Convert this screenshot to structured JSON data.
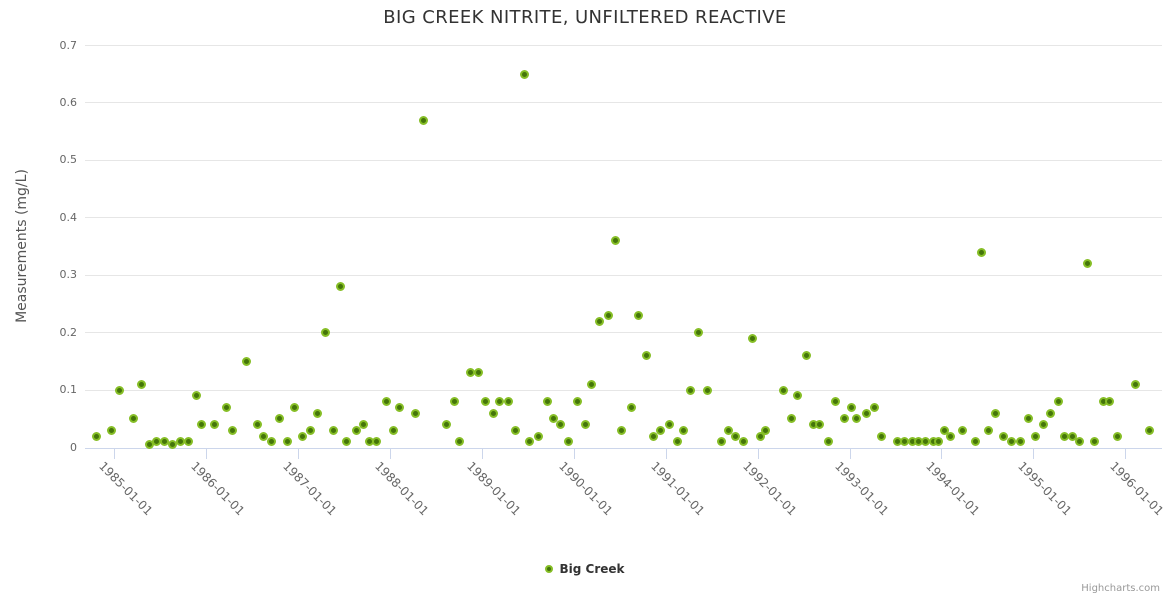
{
  "credits": "Highcharts.com",
  "colors": {
    "background": "#ffffff",
    "marker_outer": "#86be26",
    "marker_inner": "#44750a",
    "grid": "#e6e6e6",
    "axis_line": "#ccd6eb",
    "title_text": "#333333",
    "axis_title_text": "#555555",
    "axis_label_text": "#666666",
    "legend_text": "#333333",
    "credits_text": "#999999"
  },
  "chart_data": {
    "type": "scatter",
    "title": "BIG CREEK NITRITE, UNFILTERED REACTIVE",
    "xlabel": "",
    "ylabel": "Measurements (mg/L)",
    "legend_position": "bottom-center",
    "grid": true,
    "xlim": [
      1984.68,
      1996.4
    ],
    "ylim": [
      0,
      0.7
    ],
    "x_ticks": [
      {
        "year": 1985,
        "label": "1985-01-01"
      },
      {
        "year": 1986,
        "label": "1986-01-01"
      },
      {
        "year": 1987,
        "label": "1987-01-01"
      },
      {
        "year": 1988,
        "label": "1988-01-01"
      },
      {
        "year": 1989,
        "label": "1989-01-01"
      },
      {
        "year": 1990,
        "label": "1990-01-01"
      },
      {
        "year": 1991,
        "label": "1991-01-01"
      },
      {
        "year": 1992,
        "label": "1992-01-01"
      },
      {
        "year": 1993,
        "label": "1993-01-01"
      },
      {
        "year": 1994,
        "label": "1994-01-01"
      },
      {
        "year": 1995,
        "label": "1995-01-01"
      },
      {
        "year": 1996,
        "label": "1996-01-01"
      }
    ],
    "y_ticks": [
      {
        "value": 0,
        "label": "0"
      },
      {
        "value": 0.1,
        "label": "0.1"
      },
      {
        "value": 0.2,
        "label": "0.2"
      },
      {
        "value": 0.3,
        "label": "0.3"
      },
      {
        "value": 0.4,
        "label": "0.4"
      },
      {
        "value": 0.5,
        "label": "0.5"
      },
      {
        "value": 0.6,
        "label": "0.6"
      },
      {
        "value": 0.7,
        "label": "0.7"
      }
    ],
    "series": [
      {
        "name": "Big Creek",
        "points": [
          [
            1984.8,
            0.02
          ],
          [
            1984.97,
            0.03
          ],
          [
            1985.05,
            0.1
          ],
          [
            1985.21,
            0.05
          ],
          [
            1985.29,
            0.11
          ],
          [
            1985.38,
            0.005
          ],
          [
            1985.46,
            0.01
          ],
          [
            1985.54,
            0.01
          ],
          [
            1985.63,
            0.005
          ],
          [
            1985.72,
            0.01
          ],
          [
            1985.81,
            0.01
          ],
          [
            1985.89,
            0.09
          ],
          [
            1985.95,
            0.04
          ],
          [
            1986.09,
            0.04
          ],
          [
            1986.22,
            0.07
          ],
          [
            1986.29,
            0.03
          ],
          [
            1986.44,
            0.15
          ],
          [
            1986.56,
            0.04
          ],
          [
            1986.62,
            0.02
          ],
          [
            1986.71,
            0.01
          ],
          [
            1986.8,
            0.05
          ],
          [
            1986.88,
            0.01
          ],
          [
            1986.96,
            0.07
          ],
          [
            1987.05,
            0.02
          ],
          [
            1987.13,
            0.03
          ],
          [
            1987.21,
            0.06
          ],
          [
            1987.3,
            0.2
          ],
          [
            1987.38,
            0.03
          ],
          [
            1987.46,
            0.28
          ],
          [
            1987.53,
            0.01
          ],
          [
            1987.63,
            0.03
          ],
          [
            1987.71,
            0.04
          ],
          [
            1987.78,
            0.01
          ],
          [
            1987.85,
            0.01
          ],
          [
            1987.96,
            0.08
          ],
          [
            1988.04,
            0.03
          ],
          [
            1988.1,
            0.07
          ],
          [
            1988.28,
            0.06
          ],
          [
            1988.36,
            0.57
          ],
          [
            1988.61,
            0.04
          ],
          [
            1988.7,
            0.08
          ],
          [
            1988.76,
            0.01
          ],
          [
            1988.88,
            0.13
          ],
          [
            1988.96,
            0.13
          ],
          [
            1989.04,
            0.08
          ],
          [
            1989.13,
            0.06
          ],
          [
            1989.19,
            0.08
          ],
          [
            1989.29,
            0.08
          ],
          [
            1989.37,
            0.03
          ],
          [
            1989.46,
            0.65
          ],
          [
            1989.52,
            0.01
          ],
          [
            1989.62,
            0.02
          ],
          [
            1989.71,
            0.08
          ],
          [
            1989.78,
            0.05
          ],
          [
            1989.85,
            0.04
          ],
          [
            1989.94,
            0.01
          ],
          [
            1990.04,
            0.08
          ],
          [
            1990.13,
            0.04
          ],
          [
            1990.19,
            0.11
          ],
          [
            1990.28,
            0.22
          ],
          [
            1990.38,
            0.23
          ],
          [
            1990.45,
            0.36
          ],
          [
            1990.52,
            0.03
          ],
          [
            1990.63,
            0.07
          ],
          [
            1990.7,
            0.23
          ],
          [
            1990.79,
            0.16
          ],
          [
            1990.87,
            0.02
          ],
          [
            1990.94,
            0.03
          ],
          [
            1991.04,
            0.04
          ],
          [
            1991.13,
            0.01
          ],
          [
            1991.19,
            0.03
          ],
          [
            1991.27,
            0.1
          ],
          [
            1991.36,
            0.2
          ],
          [
            1991.45,
            0.1
          ],
          [
            1991.61,
            0.01
          ],
          [
            1991.68,
            0.03
          ],
          [
            1991.76,
            0.02
          ],
          [
            1991.85,
            0.01
          ],
          [
            1991.94,
            0.19
          ],
          [
            1992.03,
            0.02
          ],
          [
            1992.09,
            0.03
          ],
          [
            1992.28,
            0.1
          ],
          [
            1992.37,
            0.05
          ],
          [
            1992.43,
            0.09
          ],
          [
            1992.53,
            0.16
          ],
          [
            1992.61,
            0.04
          ],
          [
            1992.67,
            0.04
          ],
          [
            1992.77,
            0.01
          ],
          [
            1992.85,
            0.08
          ],
          [
            1992.94,
            0.05
          ],
          [
            1993.02,
            0.07
          ],
          [
            1993.08,
            0.05
          ],
          [
            1993.18,
            0.06
          ],
          [
            1993.27,
            0.07
          ],
          [
            1993.35,
            0.02
          ],
          [
            1993.52,
            0.01
          ],
          [
            1993.6,
            0.01
          ],
          [
            1993.68,
            0.01
          ],
          [
            1993.75,
            0.01
          ],
          [
            1993.83,
            0.01
          ],
          [
            1993.91,
            0.01
          ],
          [
            1993.97,
            0.01
          ],
          [
            1994.03,
            0.03
          ],
          [
            1994.1,
            0.02
          ],
          [
            1994.23,
            0.03
          ],
          [
            1994.37,
            0.01
          ],
          [
            1994.44,
            0.34
          ],
          [
            1994.51,
            0.03
          ],
          [
            1994.59,
            0.06
          ],
          [
            1994.68,
            0.02
          ],
          [
            1994.76,
            0.01
          ],
          [
            1994.86,
            0.01
          ],
          [
            1994.95,
            0.05
          ],
          [
            1995.02,
            0.02
          ],
          [
            1995.11,
            0.04
          ],
          [
            1995.19,
            0.06
          ],
          [
            1995.27,
            0.08
          ],
          [
            1995.34,
            0.02
          ],
          [
            1995.43,
            0.02
          ],
          [
            1995.5,
            0.01
          ],
          [
            1995.59,
            0.32
          ],
          [
            1995.67,
            0.01
          ],
          [
            1995.76,
            0.08
          ],
          [
            1995.83,
            0.08
          ],
          [
            1995.92,
            0.02
          ],
          [
            1996.11,
            0.11
          ],
          [
            1996.26,
            0.03
          ]
        ]
      }
    ]
  }
}
